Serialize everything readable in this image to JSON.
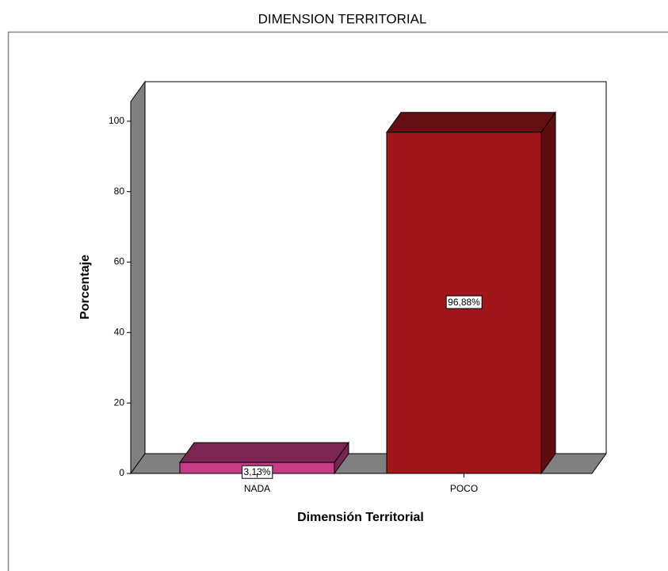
{
  "chart_data": {
    "type": "bar3d",
    "title": "DIMENSION TERRITORIAL",
    "x_label": "Dimensión Territorial",
    "y_label": "Porcentaje",
    "categories": [
      "NADA",
      "POCO"
    ],
    "values": [
      3.13,
      96.88
    ],
    "value_labels": [
      "3,13%",
      "96,88%"
    ],
    "colors": [
      "#c63c86",
      "#a0161b"
    ],
    "ylim": [
      0,
      105.6
    ],
    "yticks": [
      0,
      20,
      40,
      60,
      80,
      100
    ]
  }
}
